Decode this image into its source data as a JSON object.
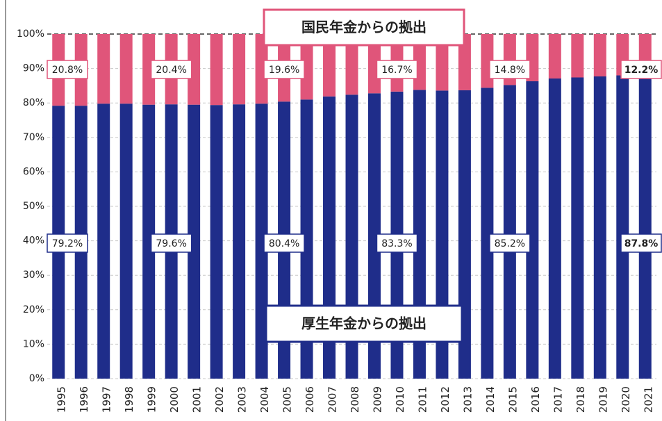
{
  "chart_data": {
    "type": "stacked_bar",
    "categories": [
      "1995",
      "1996",
      "1997",
      "1998",
      "1999",
      "2000",
      "2001",
      "2002",
      "2003",
      "2004",
      "2005",
      "2006",
      "2007",
      "2008",
      "2009",
      "2010",
      "2011",
      "2012",
      "2013",
      "2014",
      "2015",
      "2016",
      "2017",
      "2018",
      "2019",
      "2020",
      "2021"
    ],
    "series": [
      {
        "name": "厚生年金からの拠出",
        "color": "#1f2d8a",
        "values": [
          79.2,
          79.2,
          79.8,
          79.8,
          79.5,
          79.6,
          79.5,
          79.4,
          79.6,
          79.8,
          80.4,
          81.0,
          81.9,
          82.4,
          82.8,
          83.3,
          83.8,
          83.6,
          83.7,
          84.4,
          85.2,
          86.3,
          87.1,
          87.4,
          87.7,
          88.0,
          87.8
        ],
        "value_labels": [
          "79.2%",
          null,
          null,
          null,
          null,
          "79.6%",
          null,
          null,
          null,
          null,
          "80.4%",
          null,
          null,
          null,
          null,
          "83.3%",
          null,
          null,
          null,
          null,
          "85.2%",
          null,
          null,
          null,
          null,
          null,
          "87.8%"
        ]
      },
      {
        "name": "国民年金からの拠出",
        "color": "#e0557a",
        "values": [
          20.8,
          20.8,
          20.2,
          20.2,
          20.5,
          20.4,
          20.5,
          20.6,
          20.4,
          20.2,
          19.6,
          19.0,
          18.1,
          17.6,
          17.2,
          16.7,
          16.2,
          16.4,
          16.3,
          15.6,
          14.8,
          13.7,
          12.9,
          12.6,
          12.3,
          12.0,
          12.2
        ],
        "value_labels": [
          "20.8%",
          null,
          null,
          null,
          null,
          "20.4%",
          null,
          null,
          null,
          null,
          "19.6%",
          null,
          null,
          null,
          null,
          "16.7%",
          null,
          null,
          null,
          null,
          "14.8%",
          null,
          null,
          null,
          null,
          null,
          "12.2%"
        ]
      }
    ],
    "ylim": [
      0,
      100
    ],
    "yticks": [
      {
        "value": 0,
        "label": "0%"
      },
      {
        "value": 10,
        "label": "10%"
      },
      {
        "value": 20,
        "label": "20%"
      },
      {
        "value": 30,
        "label": "30%"
      },
      {
        "value": 40,
        "label": "40%"
      },
      {
        "value": 50,
        "label": "50%"
      },
      {
        "value": 60,
        "label": "60%"
      },
      {
        "value": 70,
        "label": "70%"
      },
      {
        "value": 80,
        "label": "80%"
      },
      {
        "value": 90,
        "label": "90%"
      },
      {
        "value": 100,
        "label": "100%"
      }
    ],
    "grid": true
  }
}
